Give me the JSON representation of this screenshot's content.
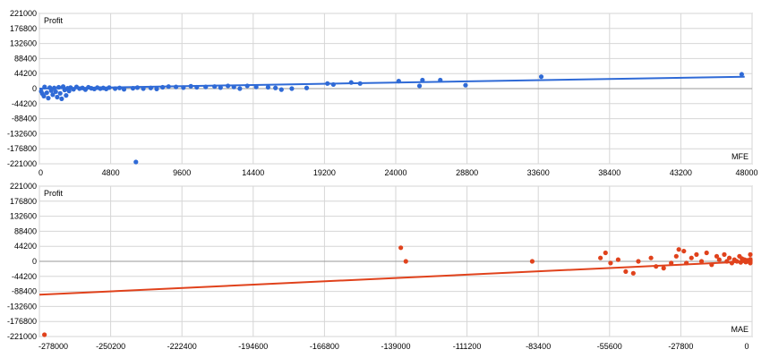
{
  "colors": {
    "mfe": "#2f6ad6",
    "mae": "#e0421c",
    "grid": "#d6d6d6",
    "axis": "#9a9a9a"
  },
  "chart_data": [
    {
      "type": "scatter",
      "ylabel": "Profit",
      "xlabel": "MFE",
      "color": "#2f6ad6",
      "xlim": [
        0,
        48000
      ],
      "ylim": [
        -221000,
        221000
      ],
      "xticks": [
        "0",
        "4800",
        "9600",
        "14400",
        "19200",
        "24000",
        "28800",
        "33600",
        "38400",
        "43200",
        "48000"
      ],
      "yticks": [
        "221000",
        "176800",
        "132600",
        "88400",
        "44200",
        "0",
        "-44200",
        "-88400",
        "-132600",
        "-176800",
        "-221000"
      ],
      "trend": [
        [
          0,
          0
        ],
        [
          47500,
          35000
        ]
      ],
      "points": [
        [
          100,
          -8000
        ],
        [
          200,
          -15000
        ],
        [
          300,
          -22000
        ],
        [
          350,
          5000
        ],
        [
          500,
          -12000
        ],
        [
          600,
          -28000
        ],
        [
          700,
          3000
        ],
        [
          800,
          -6000
        ],
        [
          900,
          -18000
        ],
        [
          1000,
          2000
        ],
        [
          1100,
          -9000
        ],
        [
          1200,
          -25000
        ],
        [
          1300,
          4000
        ],
        [
          1400,
          -14000
        ],
        [
          1500,
          -30000
        ],
        [
          1600,
          6000
        ],
        [
          1700,
          -4000
        ],
        [
          1800,
          -20000
        ],
        [
          1900,
          1000
        ],
        [
          2000,
          -7000
        ],
        [
          2100,
          3000
        ],
        [
          2300,
          -2000
        ],
        [
          2500,
          5000
        ],
        [
          2700,
          0
        ],
        [
          2900,
          2000
        ],
        [
          3100,
          -3000
        ],
        [
          3300,
          4000
        ],
        [
          3500,
          1000
        ],
        [
          3700,
          -1000
        ],
        [
          3900,
          3000
        ],
        [
          4100,
          0
        ],
        [
          4300,
          2000
        ],
        [
          4500,
          -1000
        ],
        [
          4700,
          3000
        ],
        [
          5100,
          0
        ],
        [
          5400,
          2000
        ],
        [
          5700,
          -2000
        ],
        [
          6300,
          1000
        ],
        [
          6600,
          3000
        ],
        [
          7000,
          0
        ],
        [
          7500,
          2000
        ],
        [
          7900,
          -1000
        ],
        [
          8300,
          4000
        ],
        [
          8700,
          6000
        ],
        [
          9200,
          5000
        ],
        [
          9700,
          3000
        ],
        [
          10200,
          7000
        ],
        [
          10600,
          4000
        ],
        [
          11200,
          5000
        ],
        [
          11800,
          6000
        ],
        [
          12200,
          3000
        ],
        [
          12700,
          8000
        ],
        [
          13100,
          5000
        ],
        [
          13500,
          0
        ],
        [
          14000,
          8000
        ],
        [
          14600,
          5000
        ],
        [
          15400,
          4000
        ],
        [
          15900,
          2000
        ],
        [
          16300,
          -3000
        ],
        [
          17000,
          0
        ],
        [
          18000,
          2000
        ],
        [
          19400,
          15000
        ],
        [
          19800,
          12000
        ],
        [
          21000,
          18000
        ],
        [
          21600,
          15000
        ],
        [
          24200,
          22000
        ],
        [
          25600,
          8000
        ],
        [
          25800,
          25000
        ],
        [
          27000,
          25000
        ],
        [
          28700,
          10000
        ],
        [
          33800,
          35000
        ],
        [
          47300,
          42000
        ],
        [
          6500,
          -221000
        ]
      ]
    },
    {
      "type": "scatter",
      "ylabel": "Profit",
      "xlabel": "MAE",
      "color": "#e0421c",
      "xlim": [
        -282000,
        0
      ],
      "ylim": [
        -221000,
        221000
      ],
      "xticks": [
        "-278000",
        "-250200",
        "-222400",
        "-194600",
        "-166800",
        "-139000",
        "-111200",
        "-83400",
        "-55600",
        "-27800",
        "0"
      ],
      "yticks": [
        "221000",
        "176800",
        "132600",
        "88400",
        "44200",
        "0",
        "-44200",
        "-88400",
        "-132600",
        "-176800",
        "-221000"
      ],
      "trend": [
        [
          -282000,
          -98000
        ],
        [
          0,
          0
        ]
      ],
      "points": [
        [
          -280000,
          -221000
        ],
        [
          -139000,
          40000
        ],
        [
          -137000,
          0
        ],
        [
          -87000,
          0
        ],
        [
          -60000,
          10000
        ],
        [
          -58000,
          25000
        ],
        [
          -56000,
          -5000
        ],
        [
          -53000,
          5000
        ],
        [
          -50000,
          -30000
        ],
        [
          -47000,
          -35000
        ],
        [
          -45000,
          0
        ],
        [
          -40000,
          10000
        ],
        [
          -38000,
          -15000
        ],
        [
          -35000,
          -20000
        ],
        [
          -32000,
          -5000
        ],
        [
          -30000,
          15000
        ],
        [
          -29000,
          35000
        ],
        [
          -27000,
          30000
        ],
        [
          -26000,
          -5000
        ],
        [
          -24000,
          10000
        ],
        [
          -22000,
          20000
        ],
        [
          -20000,
          0
        ],
        [
          -18000,
          25000
        ],
        [
          -16000,
          -10000
        ],
        [
          -14000,
          15000
        ],
        [
          -13000,
          5000
        ],
        [
          -11000,
          20000
        ],
        [
          -10000,
          0
        ],
        [
          -9000,
          10000
        ],
        [
          -8000,
          -5000
        ],
        [
          -7000,
          5000
        ],
        [
          -6000,
          0
        ],
        [
          -5000,
          15000
        ],
        [
          -4500,
          -3000
        ],
        [
          -4000,
          8000
        ],
        [
          -3500,
          2000
        ],
        [
          -3000,
          5000
        ],
        [
          -2500,
          -2000
        ],
        [
          -2000,
          3000
        ],
        [
          -1500,
          0
        ],
        [
          -1000,
          4000
        ],
        [
          -800,
          -1000
        ],
        [
          -600,
          2000
        ],
        [
          -400,
          6000
        ],
        [
          -300,
          0
        ],
        [
          -200,
          20000
        ],
        [
          -100,
          -5000
        ]
      ]
    }
  ]
}
